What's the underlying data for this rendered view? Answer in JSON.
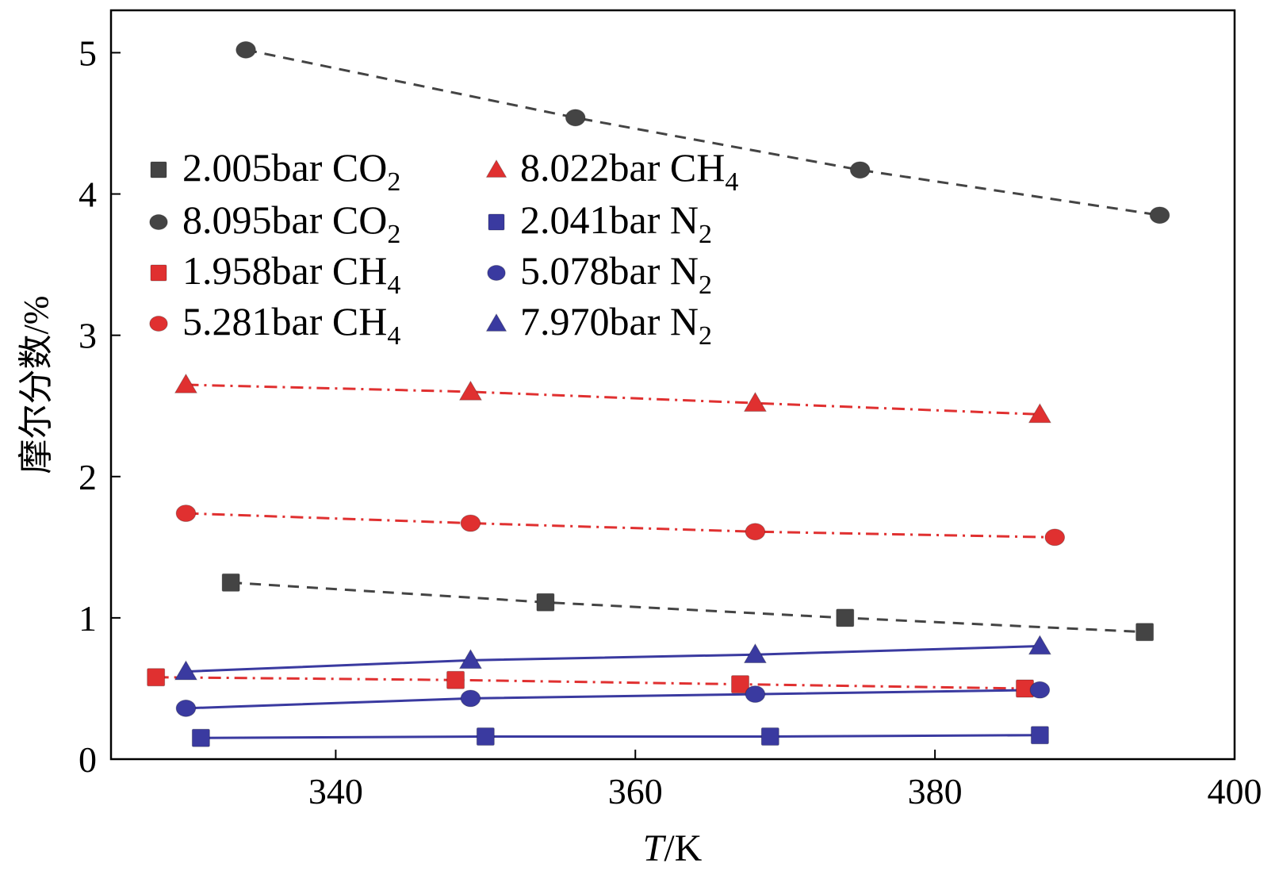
{
  "chart_data": {
    "type": "line",
    "title": "",
    "xlabel": "T/K",
    "xlabel_parts": [
      "T",
      "/K"
    ],
    "ylabel": "摩尔分数/%",
    "xlim": [
      325,
      400
    ],
    "ylim": [
      0,
      5.3
    ],
    "x_ticks": [
      {
        "value": 340,
        "label": "340"
      },
      {
        "value": 360,
        "label": "360"
      },
      {
        "value": 380,
        "label": "380"
      },
      {
        "value": 400,
        "label": "400"
      }
    ],
    "y_ticks": [
      {
        "value": 0,
        "label": "0"
      },
      {
        "value": 1,
        "label": "1"
      },
      {
        "value": 2,
        "label": "2"
      },
      {
        "value": 3,
        "label": "3"
      },
      {
        "value": 4,
        "label": "4"
      },
      {
        "value": 5,
        "label": "5"
      }
    ],
    "grid": false,
    "legend_position": "upper-left, two columns",
    "series": [
      {
        "name": "2.005bar CO2",
        "legend_main": "2.005bar CO",
        "legend_sub": "2",
        "marker": "square",
        "color": "#444444",
        "line": "dashed",
        "x": [
          333,
          354,
          374,
          394
        ],
        "y": [
          1.25,
          1.11,
          1.0,
          0.9
        ]
      },
      {
        "name": "8.095bar CO2",
        "legend_main": "8.095bar CO",
        "legend_sub": "2",
        "marker": "circle",
        "color": "#444444",
        "line": "dashed",
        "x": [
          334,
          356,
          375,
          395
        ],
        "y": [
          5.02,
          4.54,
          4.17,
          3.85
        ]
      },
      {
        "name": "1.958bar CH4",
        "legend_main": "1.958bar CH",
        "legend_sub": "4",
        "marker": "square",
        "color": "#e03030",
        "line": "dashdot",
        "x": [
          328,
          348,
          367,
          386
        ],
        "y": [
          0.58,
          0.56,
          0.53,
          0.5
        ]
      },
      {
        "name": "5.281bar CH4",
        "legend_main": "5.281bar CH",
        "legend_sub": "4",
        "marker": "circle",
        "color": "#e03030",
        "line": "dashdot",
        "x": [
          330,
          349,
          368,
          388
        ],
        "y": [
          1.74,
          1.67,
          1.61,
          1.57
        ]
      },
      {
        "name": "8.022bar CH4",
        "legend_main": "8.022bar CH",
        "legend_sub": "4",
        "marker": "triangle",
        "color": "#e03030",
        "line": "dashdot",
        "x": [
          330,
          349,
          368,
          387
        ],
        "y": [
          2.65,
          2.6,
          2.52,
          2.44
        ]
      },
      {
        "name": "2.041bar N2",
        "legend_main": "2.041bar N",
        "legend_sub": "2",
        "marker": "square",
        "color": "#3a3aa0",
        "line": "solid",
        "x": [
          331,
          350,
          369,
          387
        ],
        "y": [
          0.15,
          0.16,
          0.16,
          0.17
        ]
      },
      {
        "name": "5.078bar N2",
        "legend_main": "5.078bar N",
        "legend_sub": "2",
        "marker": "circle",
        "color": "#3a3aa0",
        "line": "solid",
        "x": [
          330,
          349,
          368,
          387
        ],
        "y": [
          0.36,
          0.43,
          0.46,
          0.49
        ]
      },
      {
        "name": "7.970bar N2",
        "legend_main": "7.970bar N",
        "legend_sub": "2",
        "marker": "triangle",
        "color": "#3a3aa0",
        "line": "solid",
        "x": [
          330,
          349,
          368,
          387
        ],
        "y": [
          0.62,
          0.7,
          0.74,
          0.8
        ]
      }
    ]
  }
}
